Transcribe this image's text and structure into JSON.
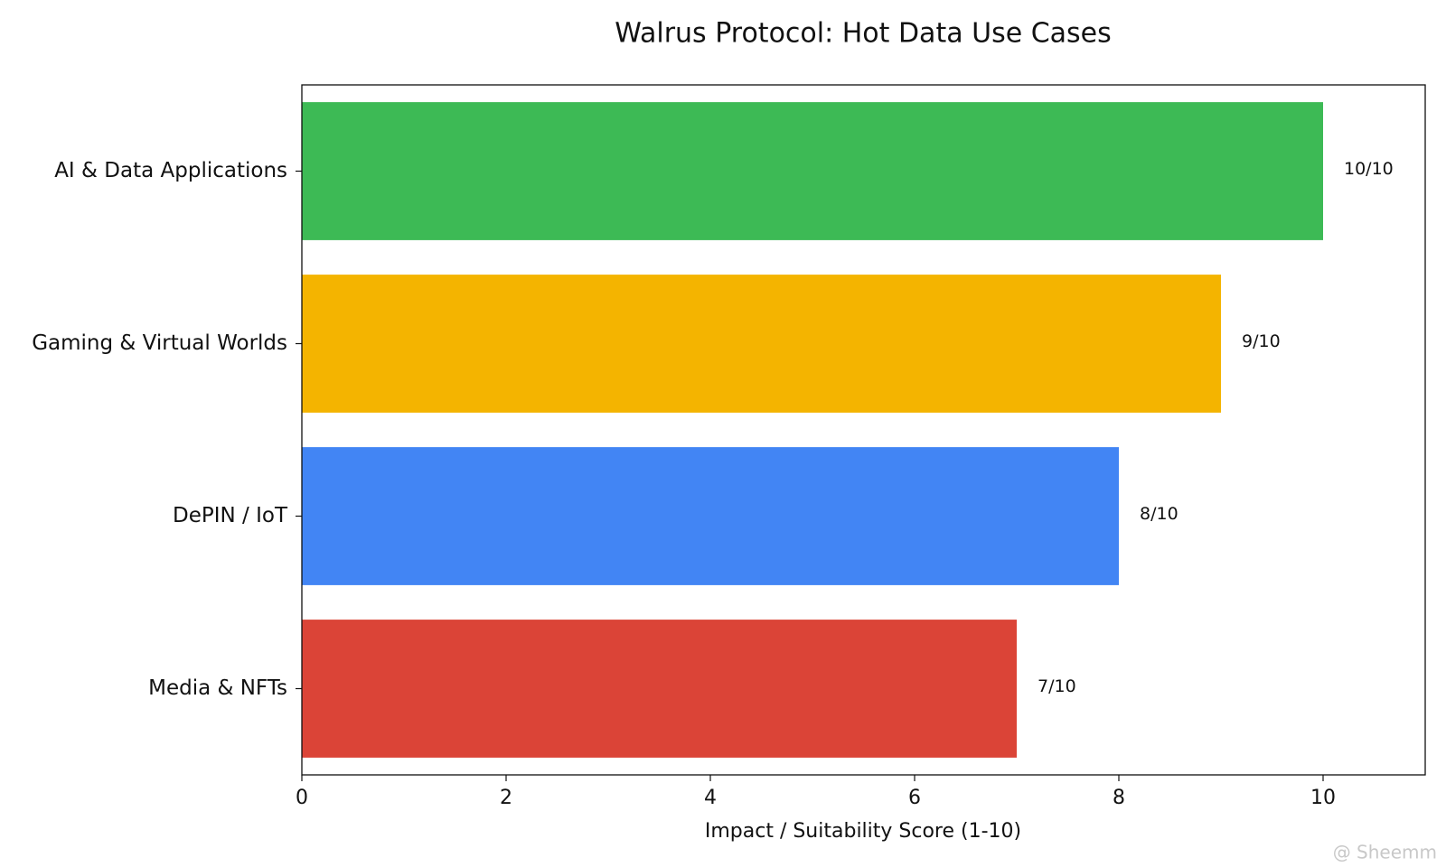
{
  "chart_data": {
    "type": "bar",
    "orientation": "horizontal",
    "title": "Walrus Protocol: Hot Data Use Cases",
    "x_label": "Impact / Suitability Score (1-10)",
    "categories": [
      "AI & Data Applications",
      "Gaming & Virtual Worlds",
      "DePIN / IoT",
      "Media & NFTs"
    ],
    "values": [
      10,
      9,
      8,
      7
    ],
    "value_labels": [
      "10/10",
      "9/10",
      "8/10",
      "7/10"
    ],
    "colors": [
      "#3dba55",
      "#f4b400",
      "#4285f4",
      "#db4437"
    ],
    "xlim": [
      0,
      11
    ],
    "xticks": [
      0,
      2,
      4,
      6,
      8,
      10
    ],
    "grid": false,
    "watermark": "@ Sheemm"
  }
}
